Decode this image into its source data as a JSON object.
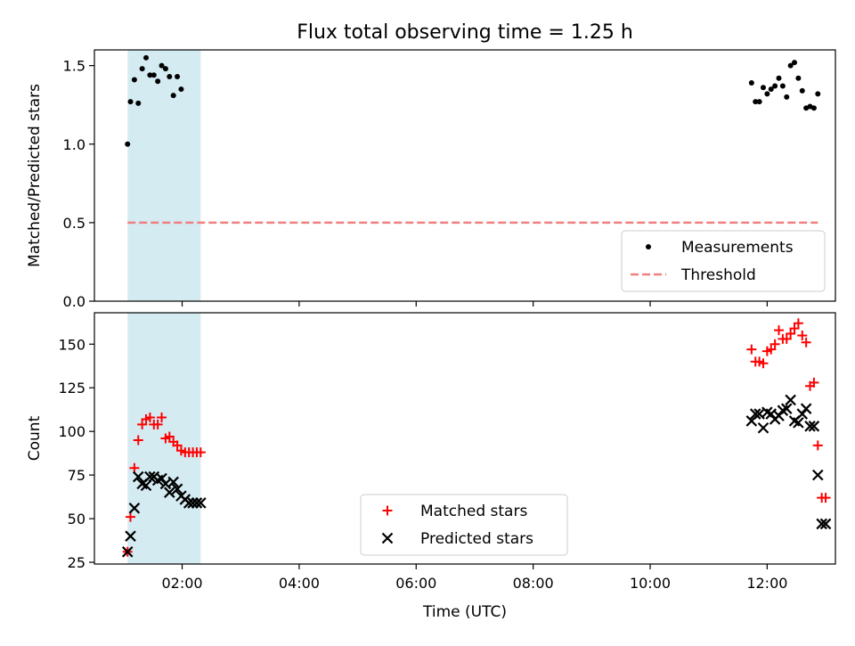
{
  "title": "Flux total observing time = 1.25 h",
  "colors": {
    "span": "#add8e6",
    "measurement": "#000000",
    "threshold": "#f08080",
    "matched": "#ff0000",
    "predicted": "#000000"
  },
  "chart_data": [
    {
      "type": "scatter",
      "ylabel": "Matched/Predicted stars",
      "xlabel": "",
      "xlim": [
        30,
        790
      ],
      "ylim": [
        0,
        1.6
      ],
      "yticks": [
        0.0,
        0.5,
        1.0,
        1.5
      ],
      "ytick_labels": [
        "0.0",
        "0.5",
        "1.0",
        "1.5"
      ],
      "xticks": [
        120,
        240,
        360,
        480,
        600,
        720
      ],
      "xtick_labels": [
        "",
        "",
        "",
        "",
        "",
        ""
      ],
      "shaded_span": [
        64,
        139
      ],
      "legend_position": "lower-right",
      "series": [
        {
          "name": "Measurements",
          "marker": "dot",
          "x": [
            64,
            67,
            71,
            75,
            79,
            83,
            87,
            91,
            95,
            99,
            103,
            107,
            111,
            115,
            119,
            704,
            708,
            712,
            716,
            720,
            724,
            728,
            732,
            736,
            740,
            744,
            748,
            752,
            756,
            760,
            764,
            768,
            772
          ],
          "y": [
            1.0,
            1.27,
            1.41,
            1.26,
            1.48,
            1.55,
            1.44,
            1.44,
            1.4,
            1.5,
            1.48,
            1.43,
            1.31,
            1.43,
            1.35,
            1.39,
            1.27,
            1.27,
            1.36,
            1.32,
            1.35,
            1.37,
            1.42,
            1.37,
            1.3,
            1.5,
            1.52,
            1.42,
            1.34,
            1.23,
            1.24,
            1.23,
            1.32
          ]
        },
        {
          "name": "Threshold",
          "style": "dashed",
          "x": [
            64,
            772
          ],
          "y": [
            0.5,
            0.5
          ]
        }
      ]
    },
    {
      "type": "scatter",
      "ylabel": "Count",
      "xlabel": "Time (UTC)",
      "xlim": [
        30,
        790
      ],
      "ylim": [
        24,
        168
      ],
      "yticks": [
        25,
        50,
        75,
        100,
        125,
        150
      ],
      "ytick_labels": [
        "25",
        "50",
        "75",
        "100",
        "125",
        "150"
      ],
      "xticks": [
        120,
        240,
        360,
        480,
        600,
        720
      ],
      "xtick_labels": [
        "02:00",
        "04:00",
        "06:00",
        "08:00",
        "10:00",
        "12:00"
      ],
      "shaded_span": [
        64,
        139
      ],
      "legend_position": "lower-center",
      "series": [
        {
          "name": "Matched stars",
          "marker": "plus",
          "x": [
            64,
            67,
            71,
            75,
            79,
            83,
            87,
            91,
            95,
            99,
            103,
            107,
            111,
            115,
            119,
            123,
            127,
            131,
            135,
            139,
            704,
            708,
            712,
            716,
            720,
            724,
            728,
            732,
            736,
            740,
            744,
            748,
            752,
            756,
            760,
            764,
            768,
            772,
            776,
            780
          ],
          "y": [
            31,
            51,
            79,
            95,
            104,
            107,
            108,
            104,
            104,
            108,
            96,
            97,
            94,
            92,
            89,
            88,
            88,
            88,
            88,
            88,
            147,
            140,
            140,
            139,
            146,
            147,
            150,
            158,
            153,
            153,
            156,
            159,
            162,
            155,
            151,
            126,
            128,
            92,
            62,
            62
          ],
          "note": ""
        },
        {
          "name": "Predicted stars",
          "marker": "x",
          "x": [
            64,
            67,
            71,
            75,
            79,
            83,
            87,
            91,
            95,
            99,
            103,
            107,
            111,
            115,
            119,
            123,
            127,
            131,
            135,
            139,
            704,
            708,
            712,
            716,
            720,
            724,
            728,
            732,
            736,
            740,
            744,
            748,
            752,
            756,
            760,
            764,
            768,
            772,
            776,
            780
          ],
          "y": [
            31,
            40,
            56,
            74,
            70,
            69,
            74,
            74,
            72,
            73,
            70,
            65,
            71,
            67,
            63,
            61,
            59,
            59,
            59,
            59,
            106,
            110,
            110,
            102,
            111,
            110,
            107,
            109,
            112,
            113,
            118,
            106,
            105,
            110,
            113,
            103,
            103,
            75,
            47,
            47
          ]
        }
      ]
    }
  ]
}
